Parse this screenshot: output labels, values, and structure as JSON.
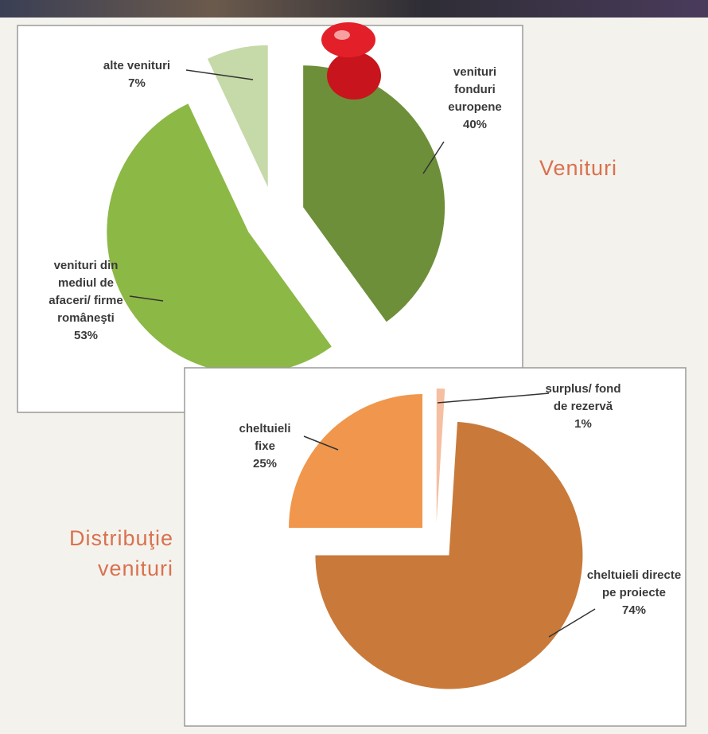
{
  "chart_data": [
    {
      "type": "pie",
      "title": "Venituri",
      "categories": [
        "venituri fonduri europene",
        "venituri din mediul de afaceri/ firme româneşti",
        "alte venituri"
      ],
      "values": [
        40,
        53,
        7
      ],
      "value_labels": [
        "40%",
        "53%",
        "7%"
      ],
      "colors": [
        "#6d8f3a",
        "#8cb845",
        "#c6d9a8"
      ]
    },
    {
      "type": "pie",
      "title": "Distribuţie venituri",
      "categories": [
        "surplus/ fond de rezervă",
        "cheltuieli directe pe proiecte",
        "cheltuieli fixe"
      ],
      "values": [
        1,
        74,
        25
      ],
      "value_labels": [
        "1%",
        "74%",
        "25%"
      ],
      "colors": [
        "#f6bfa2",
        "#c97a3a",
        "#f0974d"
      ]
    }
  ]
}
